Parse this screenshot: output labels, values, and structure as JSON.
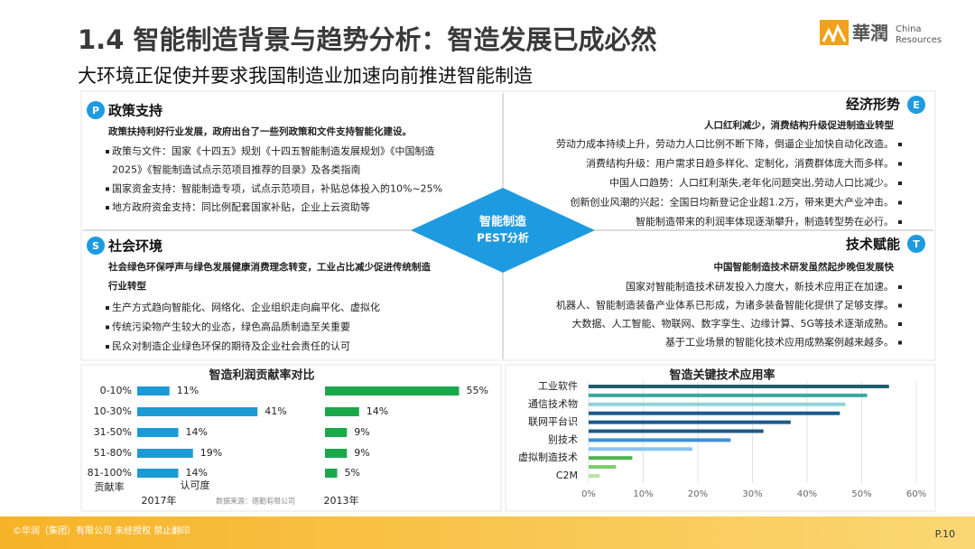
{
  "header": {
    "title": "1.4 智能制造背景与趋势分析：智造发展已成必然",
    "subtitle": "大环境正促使并要求我国制造业加速向前推进智能制造",
    "logo": "華潤",
    "logo_en": [
      "China",
      "Resources"
    ]
  },
  "pest": {
    "center": [
      "智能制造",
      "PEST分析"
    ],
    "quadrants": [
      {
        "badge": "P",
        "title": "政策支持",
        "lead": [
          "政策扶持利好行业发展，政府出台了一些列政策和文件支持智能化建设。"
        ],
        "items": [
          [
            "政策与文件：国家《十四五》规划《十四五智能制造发展规划》《中国制造",
            "2025》《智能制造试点示范项目推荐的目录》及各类指南"
          ],
          [
            "国家资金支持：智能制造专项，试点示范项目，补贴总体投入的10%~25%"
          ],
          [
            "地方政府资金支持：同比例配套国家补贴，企业上云资助等"
          ]
        ]
      },
      {
        "badge": "E",
        "title": "经济形势",
        "lead": [
          "人口红利减少，消费结构升级促进制造业转型"
        ],
        "items": [
          [
            "劳动力成本持续上升，劳动力人口比例不断下降，倒逼企业加快自动化改造。"
          ],
          [
            "消费结构升级：用户需求日趋多样化、定制化，消费群体庞大而多样。"
          ],
          [
            "中国人口趋势：人口红利渐失,老年化问题突出,劳动人口比减少。"
          ],
          [
            "创新创业风潮的兴起：全国日均新登记企业超1.2万，带来更大产业冲击。"
          ],
          [
            "智能制造带来的利润率体现逐渐攀升，制造转型势在必行。"
          ]
        ]
      },
      {
        "badge": "S",
        "title": "社会环境",
        "lead": [
          "社会绿色环保呼声与绿色发展健康消费理念转变，工业占比减少促进传统制造",
          "行业转型"
        ],
        "items": [
          [
            "生产方式趋向智能化、网络化、企业组织走向扁平化、虚拟化"
          ],
          [
            "传统污染物产生较大的业态，绿色高品质制造至关重要"
          ],
          [
            "民众对制造企业绿色环保的期待及企业社会责任的认可"
          ]
        ]
      },
      {
        "badge": "T",
        "title": "技术赋能",
        "lead": [
          "中国智能制造技术研发虽然起步晚但发展快"
        ],
        "items": [
          [
            "国家对智能制造技术研发投入力度大，新技术应用正在加速。"
          ],
          [
            "机器人、智能制造装备产业体系已形成，为诸多装备智能化提供了足够支撑。"
          ],
          [
            "大数据、人工智能、物联网、数字孪生、边缘计算、5G等技术逐渐成熟。"
          ],
          [
            "基于工业场景的智能化技术应用成熟案例越来越多。"
          ]
        ]
      }
    ]
  },
  "chart_data": [
    {
      "type": "bar",
      "orientation": "horizontal",
      "title": "智造利润贡献率对比",
      "categories": [
        "0-10%",
        "10-30%",
        "31-50%",
        "51-80%",
        "81-100%"
      ],
      "y_label": "贡献率",
      "x_label": "认可度",
      "source": "数据来源：德勤有限公司",
      "series": [
        {
          "name": "2017年",
          "color": "#1c9ad6",
          "values": [
            11,
            41,
            14,
            19,
            14
          ],
          "value_labels": [
            "11%",
            "41%",
            "14%",
            "19%",
            "14%"
          ]
        },
        {
          "name": "2013年",
          "color": "#1aa84a",
          "values": [
            55,
            14,
            9,
            9,
            5
          ],
          "value_labels": [
            "55%",
            "14%",
            "9%",
            "9%",
            "5%"
          ]
        }
      ]
    },
    {
      "type": "bar",
      "orientation": "horizontal",
      "title": "智造关键技术应用率",
      "categories": [
        "工业软件",
        null,
        "通信技术物",
        null,
        "联网平台识",
        null,
        "别技术",
        null,
        "虚拟制造技术",
        null,
        "C2M"
      ],
      "values": [
        55,
        51,
        47,
        46,
        37,
        32,
        26,
        19,
        8,
        5,
        2
      ],
      "colors": [
        "#1f5f6e",
        "#3aa7a0",
        "#8fd3d8",
        "#1c5a8a",
        "#1c5a8a",
        "#1c5a8a",
        "#3b8fd8",
        "#8cc3ee",
        "#4fb34b",
        "#7ccd6a",
        "#b6e6a6"
      ],
      "xlim": [
        0,
        60
      ],
      "xticks": [
        {
          "value": 0,
          "label": "0%"
        },
        {
          "value": 10,
          "label": "10%"
        },
        {
          "value": 20,
          "label": "20%"
        },
        {
          "value": 30,
          "label": "30%"
        },
        {
          "value": 40,
          "label": "40%"
        },
        {
          "value": 50,
          "label": "50%"
        },
        {
          "value": 60,
          "label": "60%"
        }
      ],
      "grid": true
    }
  ],
  "footer": {
    "copyright": "©华润（集团）有限公司 未经授权 禁止翻印",
    "page": "P.10"
  }
}
